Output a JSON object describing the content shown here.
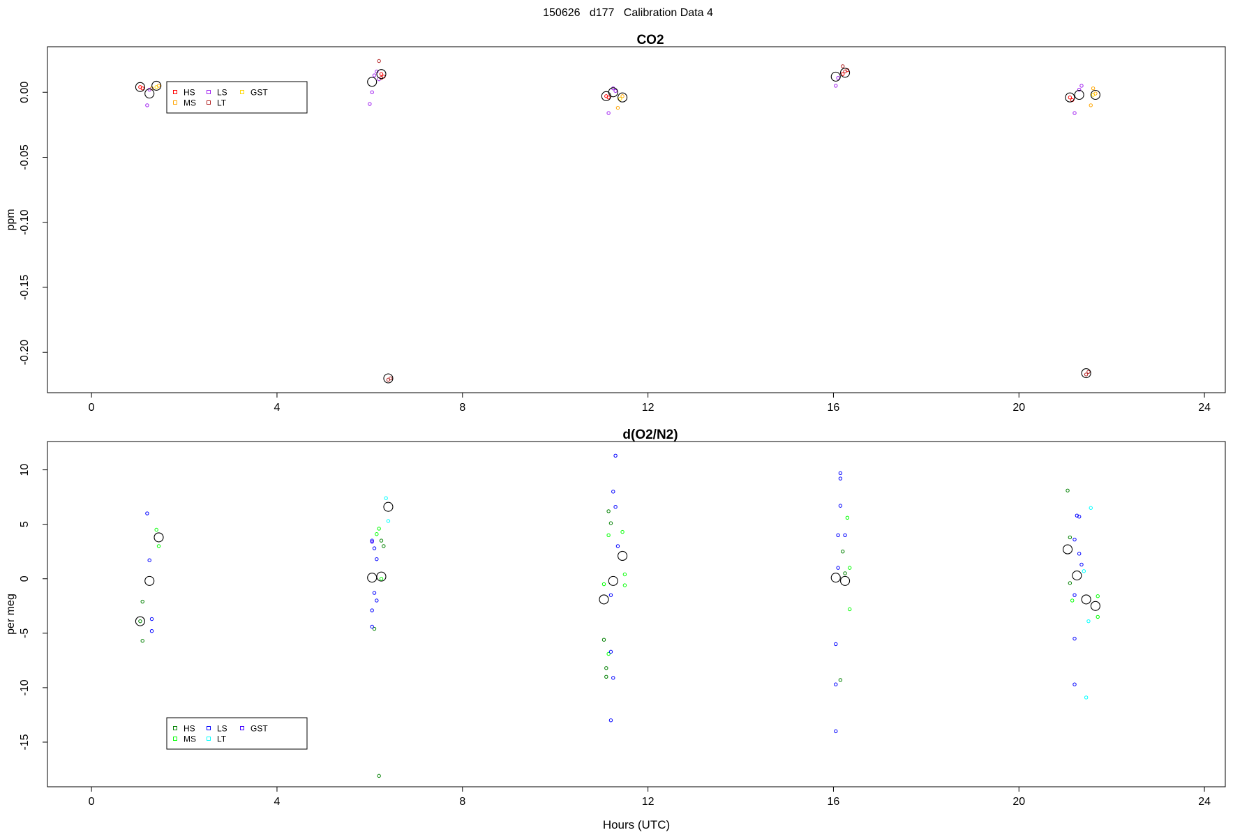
{
  "figure": {
    "title": "150626   d177   Calibration Data 4"
  },
  "chart_data": [
    {
      "type": "scatter",
      "title": "CO2",
      "xlabel": "",
      "ylabel": "ppm",
      "xlim": [
        -0.95,
        24.45
      ],
      "ylim": [
        -0.231,
        0.035
      ],
      "xticks": [
        0,
        4,
        8,
        12,
        16,
        20,
        24
      ],
      "xtick_labels": [
        "0",
        "4",
        "8",
        "12",
        "16",
        "20",
        "24"
      ],
      "yticks": [
        0.0,
        -0.05,
        -0.1,
        -0.15,
        -0.2
      ],
      "ytick_labels": [
        "0.00",
        "-0.05",
        "-0.10",
        "-0.15",
        "-0.20"
      ],
      "grid": false,
      "legend": {
        "placement": "top-left",
        "columns": 3
      },
      "series": [
        {
          "name": "HS",
          "color": "#ff0000",
          "points": [
            [
              1.05,
              0.004
            ],
            [
              1.1,
              0.003
            ],
            [
              6.25,
              0.014
            ],
            [
              6.3,
              0.012
            ],
            [
              11.1,
              -0.003
            ],
            [
              11.15,
              -0.004
            ],
            [
              16.2,
              0.014
            ],
            [
              16.3,
              0.017
            ],
            [
              21.1,
              -0.004
            ],
            [
              21.15,
              -0.006
            ]
          ]
        },
        {
          "name": "MS",
          "color": "#ffa500",
          "points": [
            [
              1.3,
              0.003
            ],
            [
              1.45,
              0.005
            ],
            [
              11.35,
              -0.012
            ],
            [
              11.45,
              -0.003
            ],
            [
              21.55,
              -0.01
            ],
            [
              21.6,
              0.003
            ],
            [
              21.65,
              -0.001
            ]
          ]
        },
        {
          "name": "LS",
          "color": "#a020f0",
          "points": [
            [
              1.2,
              -0.01
            ],
            [
              1.25,
              0.002
            ],
            [
              6.0,
              -0.009
            ],
            [
              6.05,
              0.0
            ],
            [
              6.1,
              0.013
            ],
            [
              6.15,
              0.016
            ],
            [
              6.2,
              0.01
            ],
            [
              11.15,
              -0.016
            ],
            [
              11.25,
              0.003
            ],
            [
              11.3,
              0.001
            ],
            [
              16.05,
              0.005
            ],
            [
              16.1,
              0.011
            ],
            [
              21.2,
              -0.016
            ],
            [
              21.3,
              0.002
            ],
            [
              21.35,
              0.005
            ]
          ]
        },
        {
          "name": "LT",
          "color": "#b22222",
          "points": [
            [
              6.2,
              0.024
            ],
            [
              6.25,
              0.011
            ],
            [
              6.4,
              -0.221
            ],
            [
              6.45,
              -0.22
            ],
            [
              16.2,
              0.02
            ],
            [
              16.25,
              0.016
            ],
            [
              21.45,
              -0.217
            ],
            [
              21.5,
              -0.215
            ]
          ]
        },
        {
          "name": "GST",
          "color": "#ffd700",
          "points": [
            [
              1.4,
              0.004
            ],
            [
              11.4,
              -0.005
            ],
            [
              21.6,
              -0.002
            ]
          ]
        },
        {
          "name": "",
          "color": "#000000",
          "marker": "large-circle",
          "points": [
            [
              1.05,
              0.004
            ],
            [
              1.25,
              -0.001
            ],
            [
              1.4,
              0.005
            ],
            [
              6.05,
              0.008
            ],
            [
              6.25,
              0.014
            ],
            [
              6.4,
              -0.22
            ],
            [
              11.1,
              -0.003
            ],
            [
              11.25,
              0.0
            ],
            [
              11.45,
              -0.004
            ],
            [
              16.05,
              0.012
            ],
            [
              16.25,
              0.015
            ],
            [
              21.1,
              -0.004
            ],
            [
              21.3,
              -0.002
            ],
            [
              21.45,
              -0.216
            ],
            [
              21.65,
              -0.002
            ]
          ]
        }
      ]
    },
    {
      "type": "scatter",
      "title": "d(O2/N2)",
      "xlabel": "Hours (UTC)",
      "ylabel": "per meg",
      "xlim": [
        -0.95,
        24.45
      ],
      "ylim": [
        -19.1,
        12.6
      ],
      "xticks": [
        0,
        4,
        8,
        12,
        16,
        20,
        24
      ],
      "xtick_labels": [
        "0",
        "4",
        "8",
        "12",
        "16",
        "20",
        "24"
      ],
      "yticks": [
        10,
        5,
        0,
        -5,
        -10,
        -15
      ],
      "ytick_labels": [
        "10",
        "5",
        "0",
        "-5",
        "-10",
        "-15"
      ],
      "grid": false,
      "legend": {
        "placement": "bottom-left",
        "columns": 3
      },
      "series": [
        {
          "name": "HS",
          "color": "#008000",
          "points": [
            [
              1.05,
              -3.9
            ],
            [
              1.1,
              -5.7
            ],
            [
              1.1,
              -2.1
            ],
            [
              6.1,
              -4.6
            ],
            [
              6.2,
              -18.1
            ],
            [
              6.25,
              3.5
            ],
            [
              6.3,
              3.0
            ],
            [
              11.05,
              -5.6
            ],
            [
              11.1,
              -8.2
            ],
            [
              11.1,
              -9.0
            ],
            [
              11.15,
              6.2
            ],
            [
              11.2,
              5.1
            ],
            [
              16.15,
              -9.3
            ],
            [
              16.2,
              2.5
            ],
            [
              16.25,
              0.5
            ],
            [
              21.05,
              8.1
            ],
            [
              21.1,
              3.8
            ],
            [
              21.1,
              -0.4
            ]
          ]
        },
        {
          "name": "MS",
          "color": "#00ff00",
          "points": [
            [
              1.4,
              4.5
            ],
            [
              1.45,
              3.0
            ],
            [
              6.15,
              4.1
            ],
            [
              6.2,
              4.6
            ],
            [
              6.25,
              0.0
            ],
            [
              11.05,
              -0.5
            ],
            [
              11.15,
              -6.9
            ],
            [
              11.15,
              4.0
            ],
            [
              11.45,
              4.3
            ],
            [
              11.5,
              0.4
            ],
            [
              11.5,
              -0.6
            ],
            [
              16.3,
              5.6
            ],
            [
              16.35,
              1.0
            ],
            [
              16.35,
              -2.8
            ],
            [
              21.15,
              -2.0
            ],
            [
              21.7,
              -1.6
            ],
            [
              21.7,
              -3.5
            ]
          ]
        },
        {
          "name": "LS",
          "color": "#0000ff",
          "points": [
            [
              1.2,
              6.0
            ],
            [
              1.25,
              1.7
            ],
            [
              1.3,
              -3.7
            ],
            [
              1.3,
              -4.8
            ],
            [
              6.05,
              3.5
            ],
            [
              6.05,
              -4.4
            ],
            [
              6.1,
              2.8
            ],
            [
              6.15,
              1.8
            ],
            [
              6.1,
              -1.3
            ],
            [
              6.15,
              -2.0
            ],
            [
              6.05,
              -2.9
            ],
            [
              11.2,
              -1.5
            ],
            [
              11.25,
              8.0
            ],
            [
              11.3,
              11.3
            ],
            [
              11.3,
              6.6
            ],
            [
              11.35,
              3.0
            ],
            [
              11.2,
              -6.7
            ],
            [
              11.25,
              -9.1
            ],
            [
              11.2,
              -13.0
            ],
            [
              16.05,
              -6.0
            ],
            [
              16.05,
              -9.7
            ],
            [
              16.05,
              -14.0
            ],
            [
              16.1,
              4.0
            ],
            [
              16.1,
              1.0
            ],
            [
              16.15,
              9.7
            ],
            [
              16.15,
              9.2
            ],
            [
              16.15,
              6.7
            ],
            [
              16.25,
              4.0
            ],
            [
              21.2,
              3.6
            ],
            [
              21.25,
              5.8
            ],
            [
              21.3,
              5.7
            ],
            [
              21.3,
              2.3
            ],
            [
              21.35,
              1.3
            ],
            [
              21.2,
              -1.5
            ],
            [
              21.2,
              -5.5
            ],
            [
              21.2,
              -9.7
            ]
          ]
        },
        {
          "name": "LT",
          "color": "#00ffff",
          "points": [
            [
              6.35,
              7.4
            ],
            [
              6.4,
              5.3
            ],
            [
              21.4,
              0.7
            ],
            [
              21.5,
              -3.9
            ],
            [
              21.45,
              -10.9
            ],
            [
              21.55,
              6.5
            ]
          ]
        },
        {
          "name": "GST",
          "color": "#3f00ff",
          "points": [
            [
              6.05,
              3.4
            ]
          ]
        },
        {
          "name": "",
          "color": "#000000",
          "marker": "large-circle",
          "points": [
            [
              1.05,
              -3.9
            ],
            [
              1.25,
              -0.2
            ],
            [
              1.45,
              3.8
            ],
            [
              6.05,
              0.1
            ],
            [
              6.25,
              0.2
            ],
            [
              6.4,
              6.6
            ],
            [
              11.05,
              -1.9
            ],
            [
              11.25,
              -0.2
            ],
            [
              11.45,
              2.1
            ],
            [
              16.05,
              0.1
            ],
            [
              16.25,
              -0.2
            ],
            [
              21.05,
              2.7
            ],
            [
              21.25,
              0.3
            ],
            [
              21.45,
              -1.9
            ],
            [
              21.65,
              -2.5
            ]
          ]
        }
      ]
    }
  ]
}
